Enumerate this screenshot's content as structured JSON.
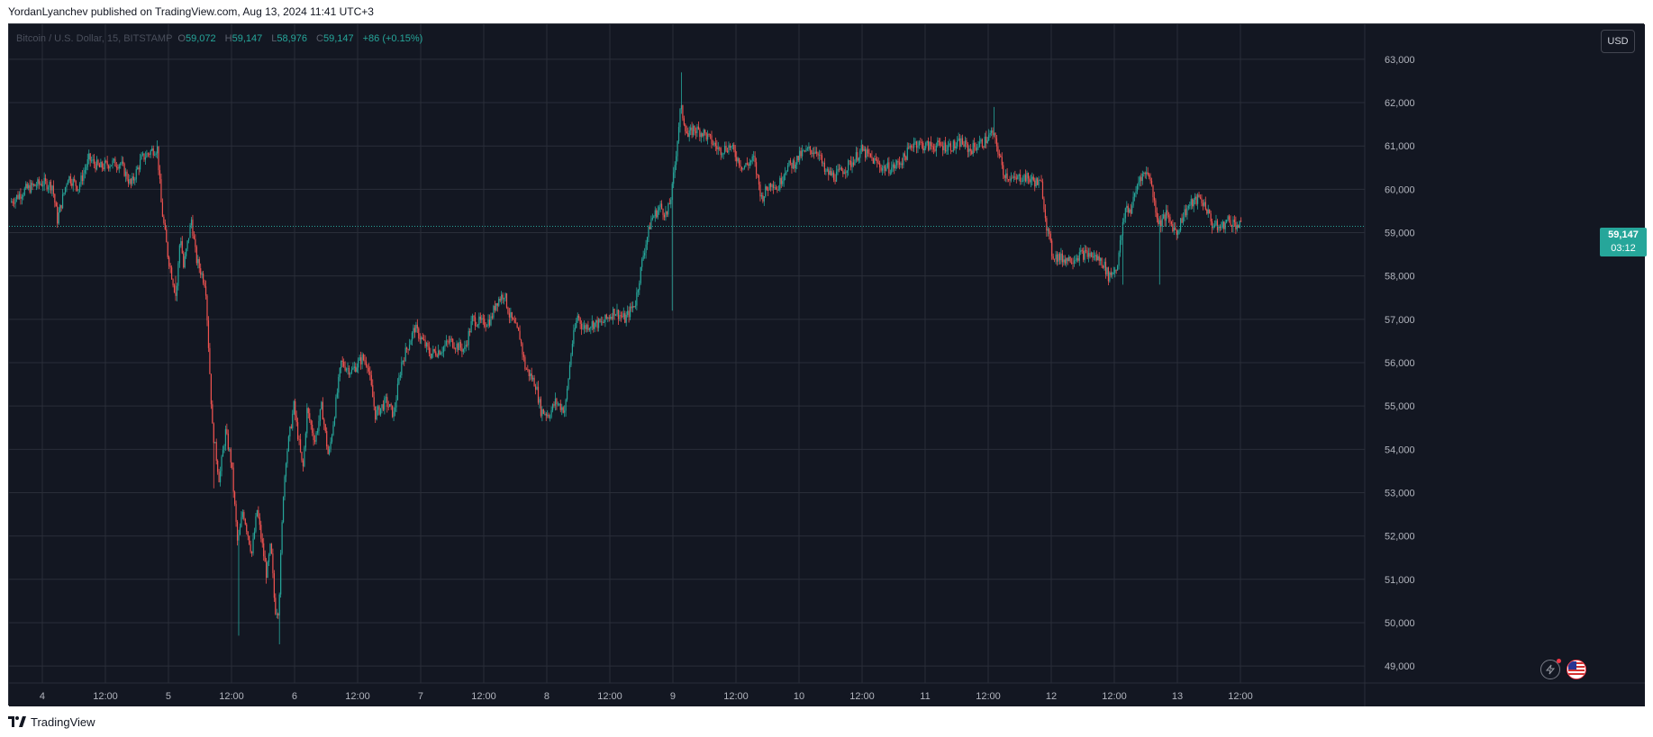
{
  "header": {
    "published_text": "YordanLyanchev published on TradingView.com, Aug 13, 2024 11:41 UTC+3"
  },
  "legend": {
    "symbol": "Bitcoin / U.S. Dollar, 15, BITSTAMP",
    "o_label": "O",
    "o_value": "59,072",
    "h_label": "H",
    "h_value": "59,147",
    "l_label": "L",
    "l_value": "58,976",
    "c_label": "C",
    "c_value": "59,147",
    "change": "+86 (+0.15%)"
  },
  "currency_button": "USD",
  "last_price": {
    "price": "59,147",
    "countdown": "03:12"
  },
  "footer": {
    "brand": "TradingView"
  },
  "colors": {
    "up": "#26a69a",
    "down": "#ef5350",
    "background": "#131722",
    "grid": "#2a2e39",
    "axis_text": "#b2b5be"
  },
  "icons": [
    "lightning-icon",
    "us-flag-icon",
    "tradingview-logo-icon"
  ],
  "chart_data": {
    "type": "candlestick",
    "title": "",
    "xlabel": "",
    "ylabel": "",
    "currency": "USD",
    "timeframe": "15",
    "ylim": [
      48400,
      63600
    ],
    "y_ticks": [
      "49,000",
      "50,000",
      "51,000",
      "52,000",
      "53,000",
      "54,000",
      "55,000",
      "56,000",
      "57,000",
      "58,000",
      "59,000",
      "60,000",
      "61,000",
      "62,000",
      "63,000"
    ],
    "y_tick_values": [
      49000,
      50000,
      51000,
      52000,
      53000,
      54000,
      55000,
      56000,
      57000,
      58000,
      59000,
      60000,
      61000,
      62000,
      63000
    ],
    "x_ticks": [
      "4",
      "12:00",
      "5",
      "12:00",
      "6",
      "12:00",
      "7",
      "12:00",
      "8",
      "12:00",
      "9",
      "12:00",
      "10",
      "12:00",
      "11",
      "12:00",
      "12",
      "12:00",
      "13",
      "12:00"
    ],
    "x_tick_hours": [
      24,
      36,
      48,
      60,
      72,
      84,
      96,
      108,
      120,
      132,
      144,
      156,
      168,
      180,
      192,
      204,
      216,
      228,
      240,
      252
    ],
    "x_range_hours": [
      18,
      271
    ],
    "last_price": 59147,
    "grid": true,
    "series_anchors": [
      [
        18,
        59700
      ],
      [
        21,
        60000
      ],
      [
        24,
        60150
      ],
      [
        26,
        60100
      ],
      [
        27,
        59300
      ],
      [
        29,
        60300
      ],
      [
        31,
        60050
      ],
      [
        33,
        60700
      ],
      [
        35,
        60500
      ],
      [
        37,
        60600
      ],
      [
        39,
        60600
      ],
      [
        41,
        60100
      ],
      [
        43,
        60700
      ],
      [
        45,
        60900
      ],
      [
        46,
        60950
      ],
      [
        46.8,
        59600
      ],
      [
        48,
        58500
      ],
      [
        49.6,
        57500
      ],
      [
        50.4,
        59000
      ],
      [
        51,
        58200
      ],
      [
        52.5,
        59300
      ],
      [
        53.4,
        58400
      ],
      [
        55.2,
        57800
      ],
      [
        56.5,
        54500
      ],
      [
        57.8,
        53300
      ],
      [
        59,
        54400
      ],
      [
        60.1,
        53700
      ],
      [
        61.3,
        51800
      ],
      [
        62.3,
        52600
      ],
      [
        64,
        51600
      ],
      [
        65,
        52600
      ],
      [
        66.8,
        51100
      ],
      [
        67.6,
        51800
      ],
      [
        68.4,
        50300
      ],
      [
        69.1,
        50300
      ],
      [
        70,
        53000
      ],
      [
        70.5,
        53800
      ],
      [
        72,
        55000
      ],
      [
        73.7,
        53500
      ],
      [
        74.5,
        54900
      ],
      [
        76,
        54200
      ],
      [
        77.3,
        55000
      ],
      [
        78.6,
        53800
      ],
      [
        81,
        56000
      ],
      [
        83,
        55800
      ],
      [
        85,
        56100
      ],
      [
        86,
        56000
      ],
      [
        87.5,
        54800
      ],
      [
        89.5,
        55100
      ],
      [
        91,
        54800
      ],
      [
        92.5,
        56000
      ],
      [
        95,
        56800
      ],
      [
        96.5,
        56500
      ],
      [
        98,
        56200
      ],
      [
        100,
        56300
      ],
      [
        101.7,
        56500
      ],
      [
        103,
        56400
      ],
      [
        104.5,
        56300
      ],
      [
        106,
        57000
      ],
      [
        108,
        56900
      ],
      [
        109.5,
        57000
      ],
      [
        110.5,
        57400
      ],
      [
        112,
        57600
      ],
      [
        113,
        57100
      ],
      [
        115,
        56600
      ],
      [
        116,
        55900
      ],
      [
        118,
        55500
      ],
      [
        119,
        54900
      ],
      [
        120.6,
        54800
      ],
      [
        121.8,
        55100
      ],
      [
        123.6,
        54900
      ],
      [
        124.9,
        56400
      ],
      [
        126,
        57100
      ],
      [
        127,
        56800
      ],
      [
        128.6,
        56900
      ],
      [
        130.6,
        56900
      ],
      [
        133,
        57200
      ],
      [
        135,
        57000
      ],
      [
        137,
        57400
      ],
      [
        138.5,
        58500
      ],
      [
        140,
        59300
      ],
      [
        141.7,
        59600
      ],
      [
        143,
        59400
      ],
      [
        143.9,
        59900
      ],
      [
        144.7,
        60800
      ],
      [
        145.6,
        61900
      ],
      [
        147,
        61200
      ],
      [
        148,
        61400
      ],
      [
        150,
        61300
      ],
      [
        151.5,
        61100
      ],
      [
        153,
        60900
      ],
      [
        155,
        61000
      ],
      [
        157.5,
        60500
      ],
      [
        159.5,
        60700
      ],
      [
        161,
        59800
      ],
      [
        163,
        60200
      ],
      [
        164,
        60000
      ],
      [
        165.6,
        60500
      ],
      [
        167.2,
        60600
      ],
      [
        168.5,
        60800
      ],
      [
        170,
        60900
      ],
      [
        171.7,
        60900
      ],
      [
        173,
        60400
      ],
      [
        175,
        60300
      ],
      [
        178,
        60600
      ],
      [
        180,
        60900
      ],
      [
        182,
        60700
      ],
      [
        184,
        60500
      ],
      [
        186,
        60500
      ],
      [
        188,
        60700
      ],
      [
        190,
        61100
      ],
      [
        192,
        61000
      ],
      [
        194,
        61000
      ],
      [
        196,
        61000
      ],
      [
        198,
        61000
      ],
      [
        199,
        61100
      ],
      [
        200.6,
        60900
      ],
      [
        201.8,
        61000
      ],
      [
        203.4,
        61100
      ],
      [
        204.9,
        61300
      ],
      [
        205.8,
        61000
      ],
      [
        207,
        60400
      ],
      [
        209,
        60200
      ],
      [
        210.6,
        60300
      ],
      [
        212.7,
        60200
      ],
      [
        214.3,
        60100
      ],
      [
        215.2,
        59200
      ],
      [
        216.3,
        58500
      ],
      [
        218,
        58400
      ],
      [
        220,
        58400
      ],
      [
        221.7,
        58500
      ],
      [
        223.4,
        58500
      ],
      [
        225,
        58400
      ],
      [
        226,
        58300
      ],
      [
        227,
        58000
      ],
      [
        228.6,
        58200
      ],
      [
        230.3,
        59600
      ],
      [
        231.2,
        59500
      ],
      [
        233,
        60300
      ],
      [
        234.7,
        60400
      ],
      [
        235.6,
        59800
      ],
      [
        236.6,
        59200
      ],
      [
        238,
        59400
      ],
      [
        240,
        59000
      ],
      [
        241.2,
        59400
      ],
      [
        242.2,
        59600
      ],
      [
        244.3,
        59800
      ],
      [
        245.6,
        59600
      ],
      [
        246.7,
        59200
      ],
      [
        248.3,
        59100
      ],
      [
        249.8,
        59300
      ],
      [
        251.2,
        59200
      ],
      [
        252,
        59147
      ]
    ],
    "wick_events": [
      [
        49.2,
        57150,
        58000
      ],
      [
        61.3,
        51700,
        49700
      ],
      [
        68.9,
        50300,
        49500
      ],
      [
        56.6,
        54200,
        53100
      ],
      [
        143.8,
        59600,
        57200
      ],
      [
        145.5,
        61700,
        62700
      ],
      [
        229.6,
        58800,
        57800
      ],
      [
        236.4,
        59000,
        57800
      ],
      [
        204.9,
        61300,
        61900
      ]
    ]
  }
}
